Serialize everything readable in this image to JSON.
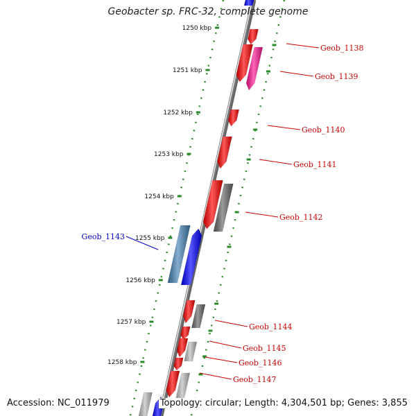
{
  "title": "Geobacter sp. FRC-32, complete genome",
  "footer": {
    "accession": "Accession: NC_011979",
    "topology": "Topology: circular; Length: 4,304,501 bp; Genes: 3,855"
  },
  "scale_ticks": [
    "1250 kbp",
    "1251 kbp",
    "1252 kbp",
    "1253 kbp",
    "1254 kbp",
    "1255 kbp",
    "1256 kbp",
    "1257 kbp",
    "1258 kbp"
  ],
  "colors": {
    "backbone": "#808080",
    "tick": "#2b8a2b",
    "gene_red": "#ff0000",
    "gene_magenta": "#ff1493",
    "gene_blue": "#0000ff",
    "gene_steelblue": "#4682b4",
    "gene_darkgray": "#666666",
    "gene_lightgray": "#bbbbbb",
    "label_red": "#cc0000",
    "label_blue": "#0000cc"
  },
  "gene_labels": [
    {
      "name": "Geob_1138",
      "color": "#cc0000"
    },
    {
      "name": "Geob_1139",
      "color": "#cc0000"
    },
    {
      "name": "Geob_1140",
      "color": "#cc0000"
    },
    {
      "name": "Geob_1141",
      "color": "#cc0000"
    },
    {
      "name": "Geob_1142",
      "color": "#cc0000"
    },
    {
      "name": "Geob_1143",
      "color": "#0000cc"
    },
    {
      "name": "Geob_1144",
      "color": "#cc0000"
    },
    {
      "name": "Geob_1145",
      "color": "#cc0000"
    },
    {
      "name": "Geob_1146",
      "color": "#cc0000"
    },
    {
      "name": "Geob_1147",
      "color": "#cc0000"
    }
  ]
}
